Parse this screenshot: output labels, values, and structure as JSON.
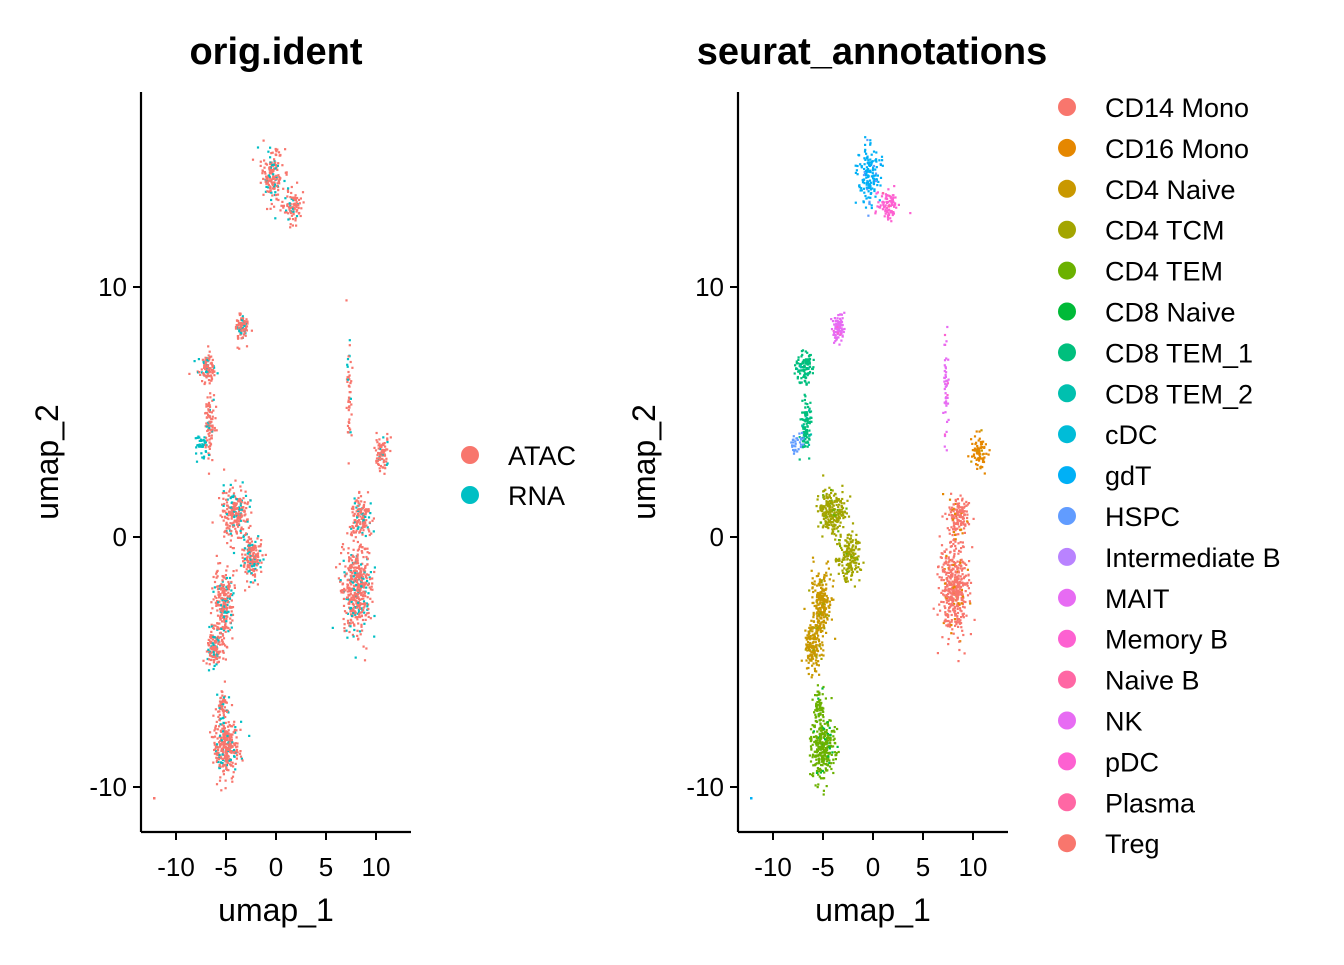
{
  "chart_data": [
    {
      "type": "scatter",
      "title": "orig.ident",
      "xlabel": "umap_1",
      "ylabel": "umap_2",
      "xlim": [
        -13.5,
        13.5
      ],
      "ylim": [
        -11.8,
        17.8
      ],
      "xticks": [
        -10,
        -5,
        0,
        5,
        10
      ],
      "xtick_labels": [
        "-10",
        "-5",
        "0",
        "5",
        "10"
      ],
      "yticks": [
        -10,
        0,
        10
      ],
      "ytick_labels": [
        "-10",
        "0",
        "10"
      ],
      "legend_position": "right",
      "series": [
        {
          "name": "ATAC",
          "color": "#F8766D"
        },
        {
          "name": "RNA",
          "color": "#00BFC4"
        }
      ]
    },
    {
      "type": "scatter",
      "title": "seurat_annotations",
      "xlabel": "umap_1",
      "ylabel": "umap_2",
      "xlim": [
        -13.5,
        13.5
      ],
      "ylim": [
        -11.8,
        17.8
      ],
      "xticks": [
        -10,
        -5,
        0,
        5,
        10
      ],
      "xtick_labels": [
        "-10",
        "-5",
        "0",
        "5",
        "10"
      ],
      "yticks": [
        -10,
        0,
        10
      ],
      "ytick_labels": [
        "-10",
        "0",
        "10"
      ],
      "legend_position": "right",
      "series": [
        {
          "name": "CD14 Mono",
          "color": "#F8766D"
        },
        {
          "name": "CD16 Mono",
          "color": "#E58700"
        },
        {
          "name": "CD4 Naive",
          "color": "#C99800"
        },
        {
          "name": "CD4 TCM",
          "color": "#A3A500"
        },
        {
          "name": "CD4 TEM",
          "color": "#6BB100"
        },
        {
          "name": "CD8 Naive",
          "color": "#00BA38"
        },
        {
          "name": "CD8 TEM_1",
          "color": "#00BF7D"
        },
        {
          "name": "CD8 TEM_2",
          "color": "#00C0AF"
        },
        {
          "name": "cDC",
          "color": "#00BCD8"
        },
        {
          "name": "gdT",
          "color": "#00B0F6"
        },
        {
          "name": "HSPC",
          "color": "#619CFF"
        },
        {
          "name": "Intermediate B",
          "color": "#B983FF"
        },
        {
          "name": "MAIT",
          "color": "#E76BF3"
        },
        {
          "name": "Memory B",
          "color": "#FD61D1"
        },
        {
          "name": "Naive B",
          "color": "#FF67A4"
        },
        {
          "name": "NK",
          "color": "#E76BF3"
        },
        {
          "name": "pDC",
          "color": "#FD61D1"
        },
        {
          "name": "Plasma",
          "color": "#FF67A4"
        },
        {
          "name": "Treg",
          "color": "#F8766D"
        }
      ]
    }
  ]
}
